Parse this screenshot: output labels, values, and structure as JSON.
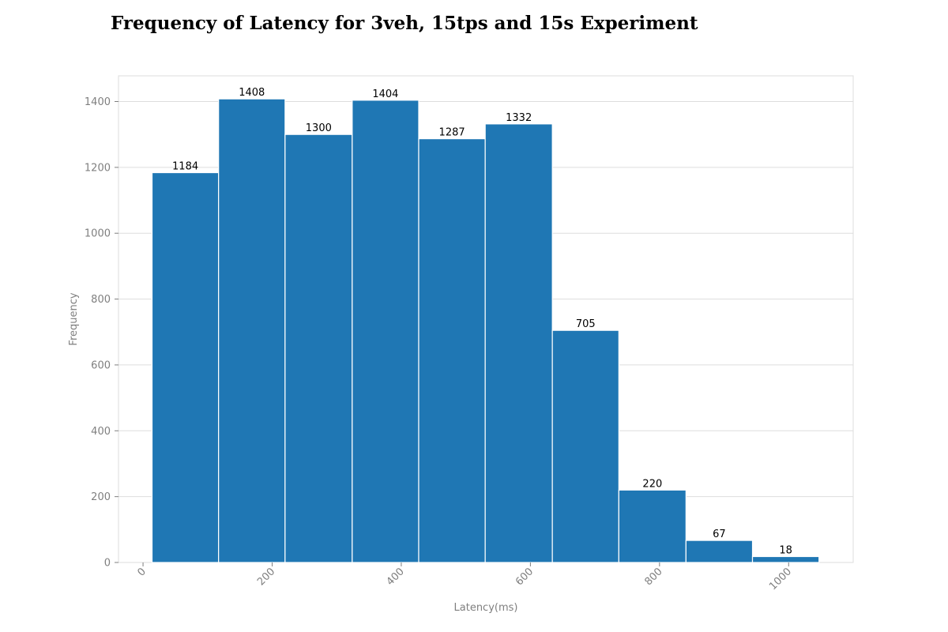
{
  "chart_data": {
    "type": "bar",
    "title": "Frequency of Latency for 3veh, 15tps and 15s Experiment",
    "xlabel": "Latency(ms)",
    "ylabel": "Frequency",
    "bins": [
      {
        "start": 14,
        "end": 117,
        "value": 1184
      },
      {
        "start": 117,
        "end": 220,
        "value": 1408
      },
      {
        "start": 220,
        "end": 324,
        "value": 1300
      },
      {
        "start": 324,
        "end": 427,
        "value": 1404
      },
      {
        "start": 427,
        "end": 530,
        "value": 1287
      },
      {
        "start": 530,
        "end": 634,
        "value": 1332
      },
      {
        "start": 634,
        "end": 737,
        "value": 705
      },
      {
        "start": 737,
        "end": 841,
        "value": 220
      },
      {
        "start": 841,
        "end": 944,
        "value": 67
      },
      {
        "start": 944,
        "end": 1047,
        "value": 18
      }
    ],
    "x_ticks": [
      0,
      200,
      400,
      600,
      800,
      1000
    ],
    "y_ticks": [
      0,
      200,
      400,
      600,
      800,
      1000,
      1200,
      1400
    ],
    "xlim": [
      -38,
      1100
    ],
    "ylim": [
      0,
      1478
    ],
    "grid": "horizontal",
    "bar_color": "#1f77b4",
    "bar_edge_color": "#ffffff",
    "grid_color": "#dddddd",
    "tick_color": "#7f7f7f"
  }
}
